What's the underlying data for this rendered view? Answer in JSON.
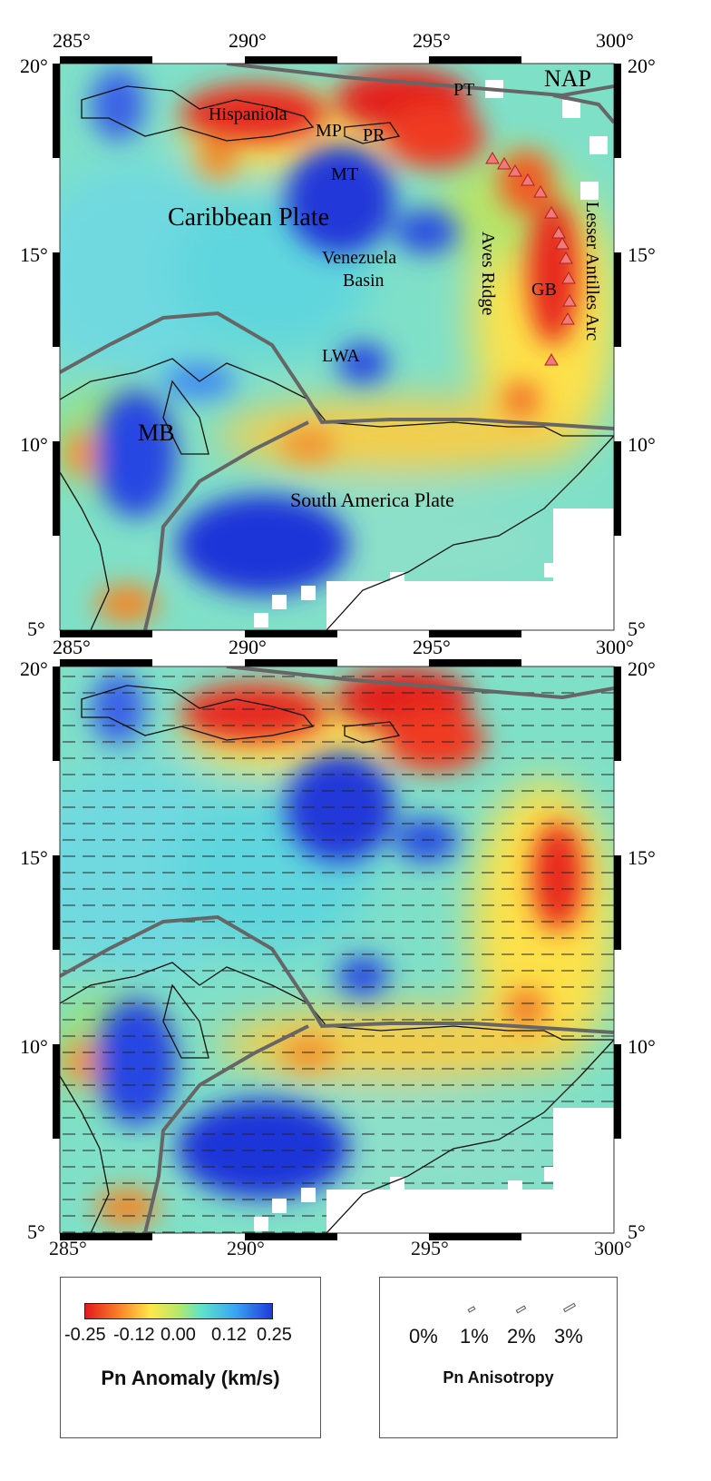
{
  "top_map": {
    "lon_ticks": [
      "285°",
      "290°",
      "295°",
      "300°"
    ],
    "lat_ticks": [
      "20°",
      "15°",
      "10°",
      "5°"
    ],
    "labels": {
      "nap": "NAP",
      "pt": "PT",
      "hispaniola": "Hispaniola",
      "mp": "MP",
      "pr": "PR",
      "mt": "MT",
      "caribbean_plate": "Caribbean Plate",
      "venezuela_basin": "Venezuela\nBasin",
      "aves_ridge": "Aves Ridge",
      "gb": "GB",
      "lesser_antilles_arc": "Lesser Antilles Arc",
      "lwa": "LWA",
      "mb": "MB",
      "south_america_plate": "South America Plate"
    }
  },
  "bottom_map": {
    "lon_ticks": [
      "285°",
      "290°",
      "295°",
      "300°"
    ],
    "lat_ticks": [
      "20°",
      "15°",
      "10°",
      "5°"
    ]
  },
  "legend_anomaly": {
    "tick_labels": [
      "-0.25",
      "-0.12",
      "0.00",
      "0.12",
      "0.25"
    ],
    "title": "Pn Anomaly (km/s)",
    "colors": [
      "#e31a1c",
      "#fc8d2c",
      "#ffe84a",
      "#b5e86b",
      "#5ee3c9",
      "#3aa6f2",
      "#1f3bdc"
    ]
  },
  "legend_anisotropy": {
    "values": [
      "0%",
      "1%",
      "2%",
      "3%"
    ],
    "title": "Pn Anisotropy"
  }
}
